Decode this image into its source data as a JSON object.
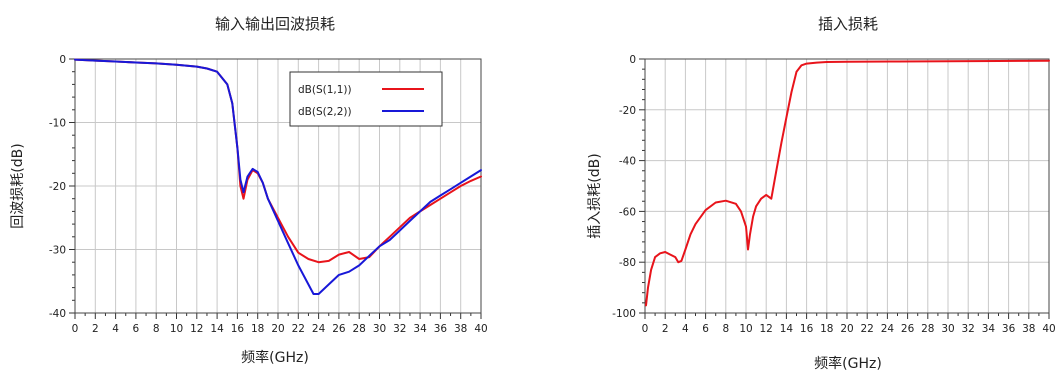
{
  "chart_data": [
    {
      "type": "line",
      "title": "输入输出回波损耗",
      "xlabel": "频率(GHz)",
      "ylabel": "回波损耗(dB)",
      "xlim": [
        0,
        40
      ],
      "ylim": [
        -40,
        0
      ],
      "xticks": [
        0,
        2,
        4,
        6,
        8,
        10,
        12,
        14,
        16,
        18,
        20,
        22,
        24,
        26,
        28,
        30,
        32,
        34,
        36,
        38,
        40
      ],
      "yticks": [
        0,
        -10,
        -20,
        -30,
        -40
      ],
      "grid": true,
      "legend_position": "top-right",
      "series": [
        {
          "name": "dB(S(1,1))",
          "color": "#e8141b",
          "x": [
            0,
            2,
            4,
            6,
            8,
            10,
            12,
            13,
            14,
            15,
            15.5,
            16,
            16.3,
            16.6,
            17,
            17.5,
            18,
            18.5,
            19,
            20,
            21,
            22,
            23,
            24,
            25,
            26,
            27,
            28,
            29,
            30,
            31,
            32,
            33,
            34,
            35,
            36,
            37,
            38,
            39,
            40
          ],
          "y": [
            -0.1,
            -0.25,
            -0.4,
            -0.55,
            -0.7,
            -0.9,
            -1.2,
            -1.5,
            -2,
            -4,
            -7,
            -14,
            -20,
            -22,
            -19,
            -17.5,
            -18,
            -19.5,
            -22,
            -25,
            -28,
            -30.5,
            -31.5,
            -32,
            -31.8,
            -30.8,
            -30.4,
            -31.5,
            -31.2,
            -29.5,
            -28,
            -26.5,
            -25,
            -24,
            -23,
            -22,
            -21,
            -20,
            -19.2,
            -18.5
          ]
        },
        {
          "name": "dB(S(2,2))",
          "color": "#1818d8",
          "x": [
            0,
            2,
            4,
            6,
            8,
            10,
            12,
            13,
            14,
            15,
            15.5,
            16,
            16.3,
            16.6,
            17,
            17.5,
            18,
            18.5,
            19,
            20,
            21,
            22,
            23,
            23.5,
            24,
            25,
            26,
            27,
            28,
            29,
            30,
            31,
            32,
            33,
            34,
            35,
            36,
            37,
            38,
            39,
            40
          ],
          "y": [
            -0.1,
            -0.25,
            -0.4,
            -0.55,
            -0.7,
            -0.9,
            -1.2,
            -1.5,
            -2,
            -4,
            -7,
            -14,
            -19,
            -21,
            -18.5,
            -17.3,
            -17.8,
            -19.5,
            -22,
            -25.5,
            -29,
            -32.5,
            -35.5,
            -37,
            -37,
            -35.5,
            -34,
            -33.5,
            -32.5,
            -31,
            -29.5,
            -28.5,
            -27,
            -25.5,
            -24,
            -22.5,
            -21.5,
            -20.5,
            -19.5,
            -18.5,
            -17.5
          ]
        }
      ]
    },
    {
      "type": "line",
      "title": "插入损耗",
      "xlabel": "频率(GHz)",
      "ylabel": "插入损耗(dB)",
      "xlim": [
        0,
        40
      ],
      "ylim": [
        -100,
        0
      ],
      "xticks": [
        0,
        2,
        4,
        6,
        8,
        10,
        12,
        14,
        16,
        18,
        20,
        22,
        24,
        26,
        28,
        30,
        32,
        34,
        36,
        38,
        40
      ],
      "yticks": [
        0,
        -20,
        -40,
        -60,
        -80,
        -100
      ],
      "grid": true,
      "series": [
        {
          "color": "#e8141b",
          "x": [
            0.1,
            0.3,
            0.6,
            1,
            1.5,
            2,
            2.5,
            3,
            3.3,
            3.6,
            4,
            4.5,
            5,
            6,
            7,
            8,
            9,
            9.5,
            10,
            10.2,
            10.4,
            10.7,
            11,
            11.5,
            12,
            12.5,
            13,
            13.5,
            14,
            14.5,
            15,
            15.5,
            16,
            17,
            18,
            20,
            25,
            30,
            35,
            40
          ],
          "y": [
            -97,
            -90,
            -83,
            -78,
            -76.5,
            -76,
            -77,
            -78,
            -80,
            -79.5,
            -75,
            -69,
            -65,
            -59.5,
            -56.5,
            -55.8,
            -57,
            -60,
            -66,
            -75,
            -69,
            -62,
            -58,
            -55,
            -53.5,
            -55,
            -44,
            -33,
            -23,
            -13,
            -5,
            -2.5,
            -1.8,
            -1.4,
            -1.2,
            -1.1,
            -1,
            -0.9,
            -0.8,
            -0.7
          ]
        }
      ]
    }
  ]
}
